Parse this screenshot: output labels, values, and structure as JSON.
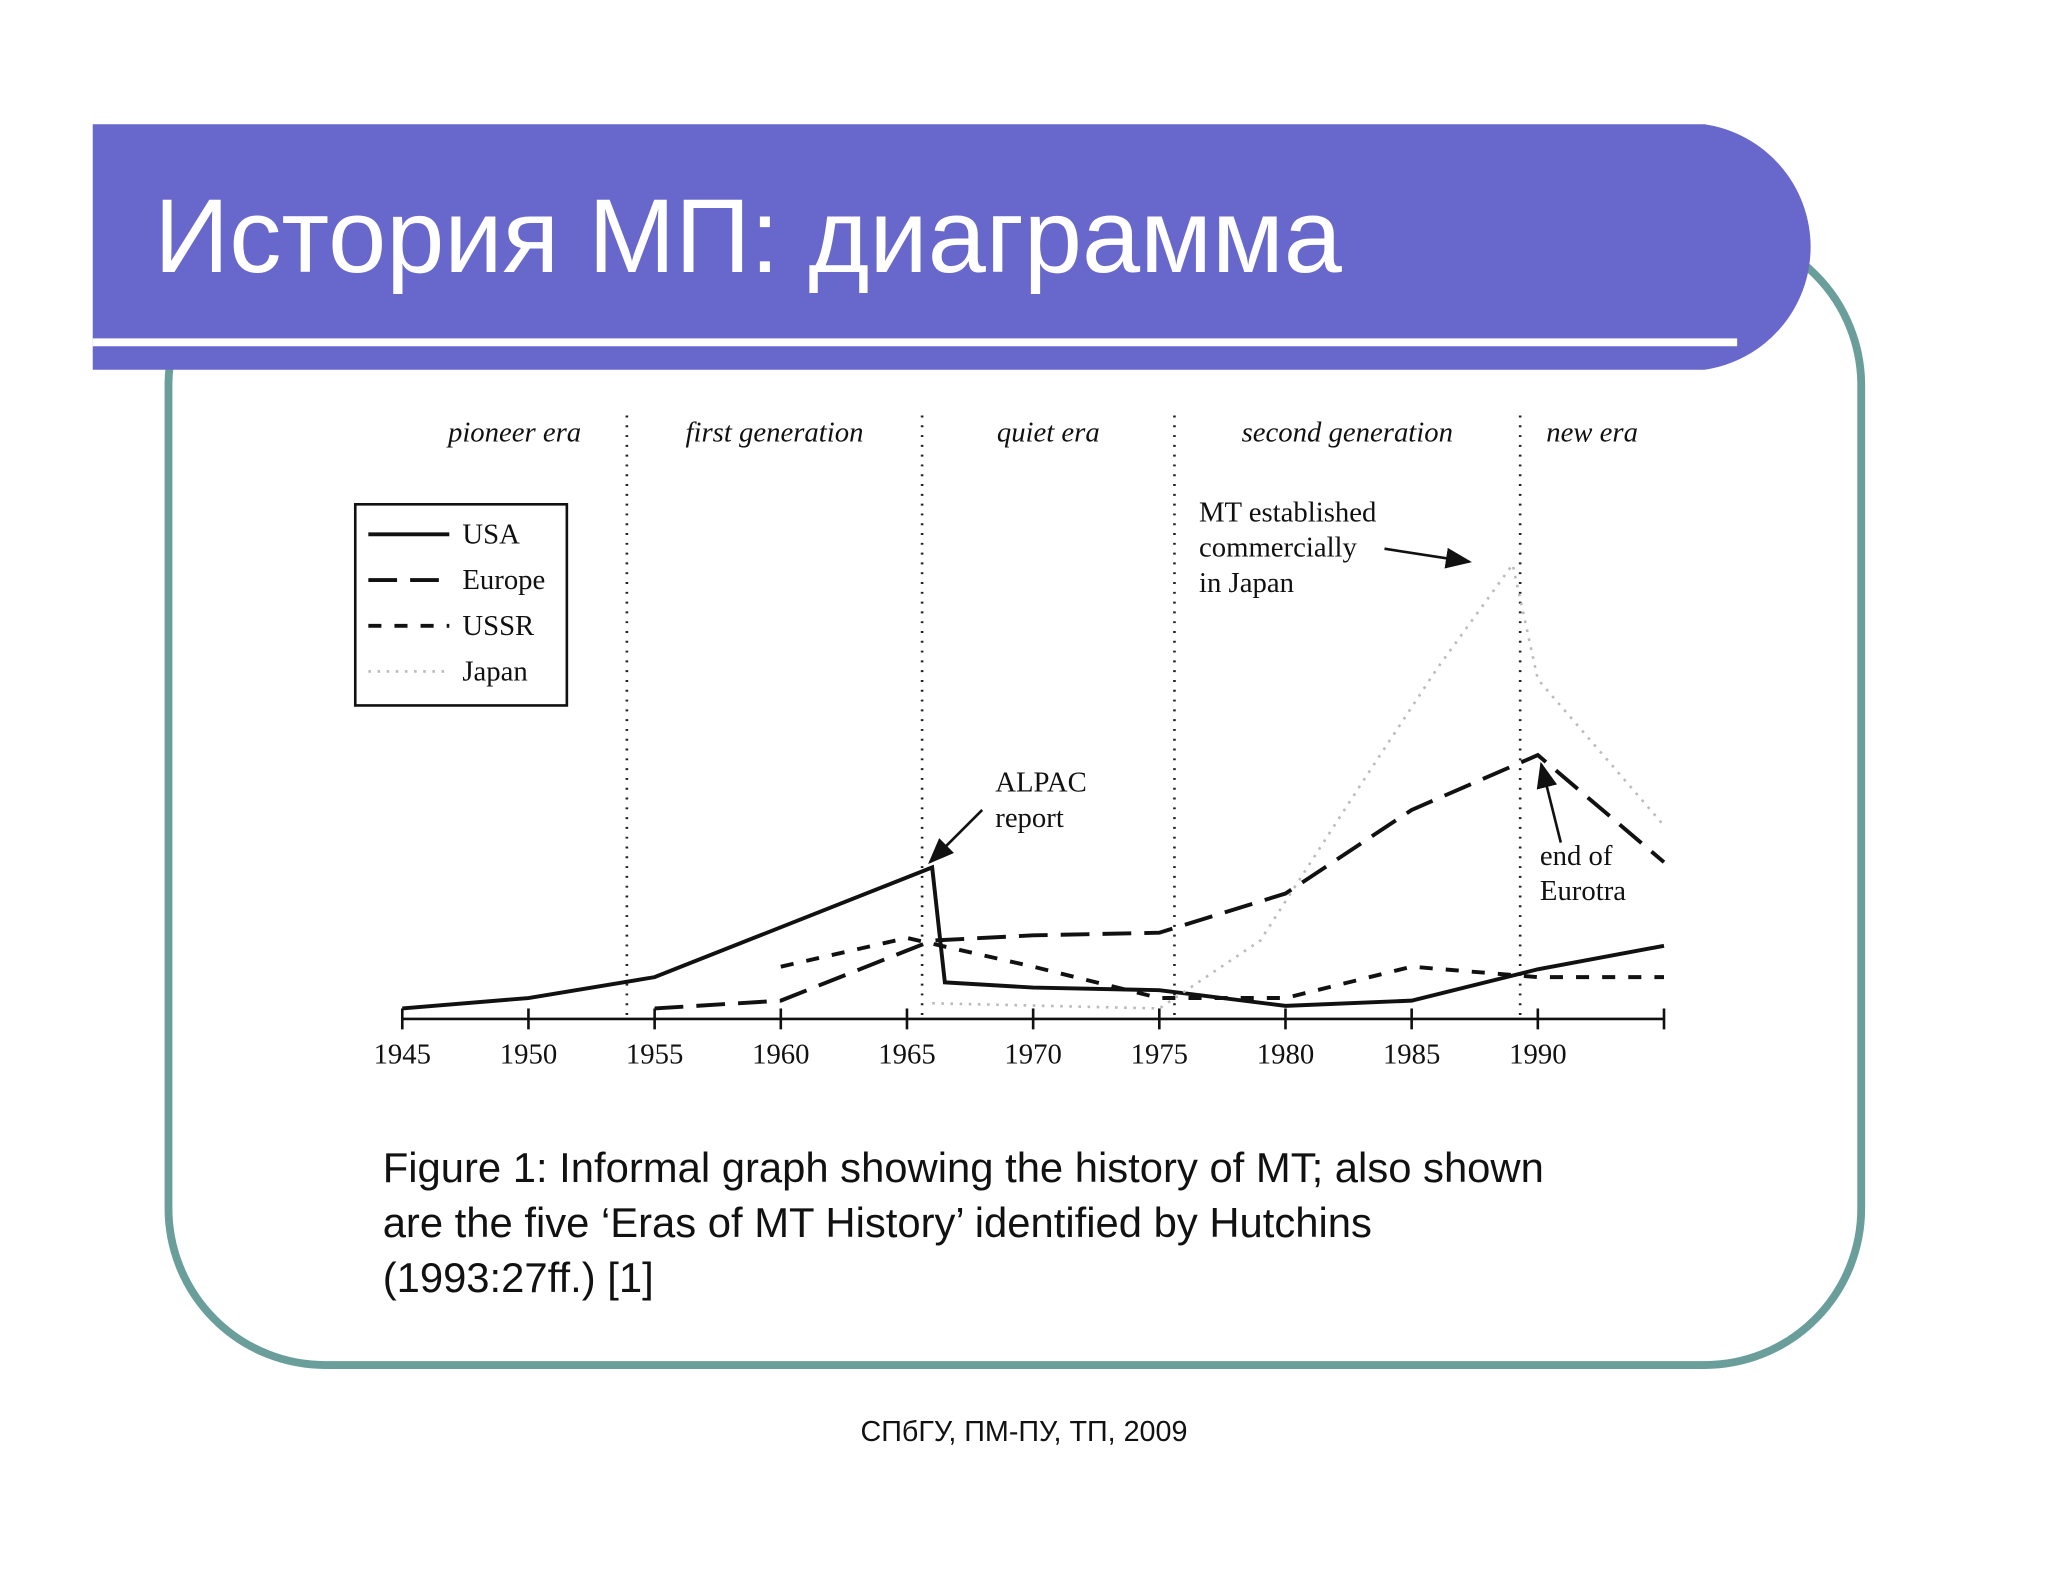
{
  "slide_title": "История МП: диаграмма",
  "caption_lines": [
    "Figure 1: Informal graph showing the history of MT; also shown",
    "are the five ‘Eras of MT History’ identified by Hutchins",
    "(1993:27ff.) [1]"
  ],
  "footer": "СПбГУ, ПМ-ПУ, ТП, 2009",
  "chart_data": {
    "type": "line",
    "xlim": [
      1945,
      1995
    ],
    "xticks": [
      1945,
      1950,
      1955,
      1960,
      1965,
      1970,
      1975,
      1980,
      1985,
      1990
    ],
    "ylim": [
      0,
      100
    ],
    "legend": "upper left",
    "eras": [
      "pioneer era",
      "first generation",
      "quiet era",
      "second generation",
      "new era"
    ],
    "era_boundaries": [
      1953.9,
      1965.6,
      1975.6,
      1989.3
    ],
    "series": [
      {
        "name": "USA",
        "color": "#111111",
        "dash": "solid",
        "x": [
          1945,
          1950,
          1955,
          1966,
          1966.5,
          1970,
          1975,
          1980,
          1985,
          1990,
          1995
        ],
        "values": [
          2,
          4,
          8,
          29,
          7,
          6,
          5.5,
          2.5,
          3.5,
          9.5,
          14
        ]
      },
      {
        "name": "Europe",
        "color": "#111111",
        "dash": "long",
        "x": [
          1955,
          1960,
          1966,
          1970,
          1975,
          1980,
          1985,
          1990,
          1995
        ],
        "values": [
          2,
          3.5,
          15,
          16,
          16.5,
          24,
          40,
          50.5,
          30
        ]
      },
      {
        "name": "USSR",
        "color": "#111111",
        "dash": "short",
        "x": [
          1960,
          1965,
          1970,
          1975,
          1980,
          1985,
          1990,
          1995
        ],
        "values": [
          10,
          15.5,
          10,
          4,
          4,
          10,
          8,
          8
        ]
      },
      {
        "name": "Japan",
        "color": "#bbbbbb",
        "dash": "dotted",
        "x": [
          1966,
          1975,
          1979,
          1983,
          1986,
          1989,
          1990,
          1995
        ],
        "values": [
          3,
          2,
          15,
          45,
          67,
          87,
          65,
          37
        ]
      }
    ],
    "annotations": [
      {
        "lines": [
          "ALPAC",
          "report"
        ]
      },
      {
        "lines": [
          "MT established",
          "commercially",
          "in Japan"
        ]
      },
      {
        "lines": [
          "end of",
          "Eurotra"
        ]
      }
    ]
  }
}
